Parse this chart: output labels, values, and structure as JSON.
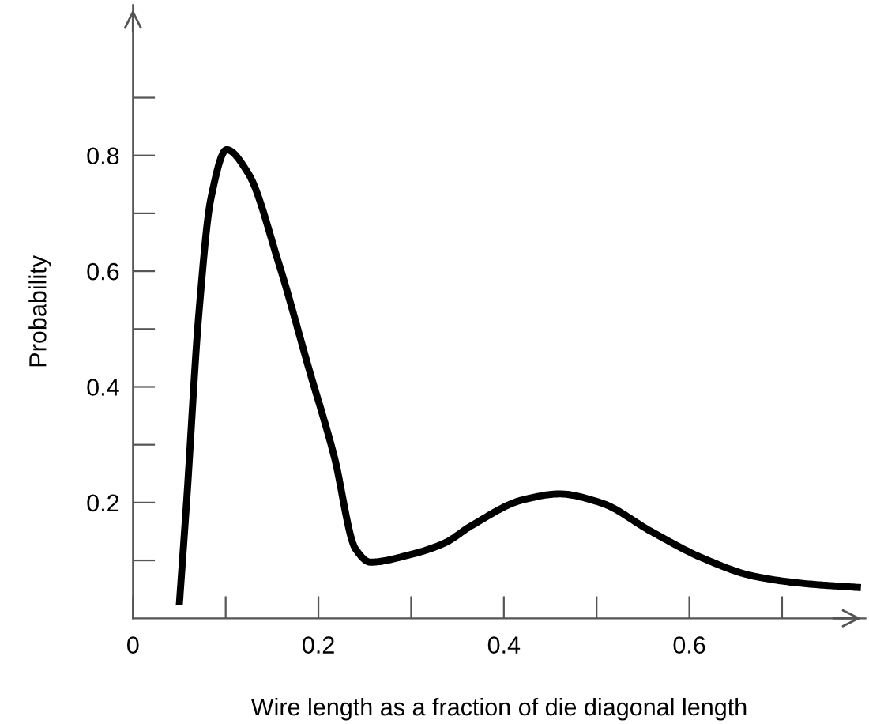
{
  "chart_data": {
    "type": "line",
    "xlabel": "Wire length as a fraction of die diagonal length",
    "ylabel": "Probability",
    "x": [
      0.05,
      0.058,
      0.071,
      0.084,
      0.101,
      0.124,
      0.157,
      0.19,
      0.217,
      0.24,
      0.256,
      0.299,
      0.336,
      0.365,
      0.421,
      0.46,
      0.504,
      0.559,
      0.613,
      0.669,
      0.724,
      0.785
    ],
    "series": [
      {
        "color": "#000000",
        "values": [
          0.023,
          0.205,
          0.525,
          0.725,
          0.81,
          0.77,
          0.615,
          0.43,
          0.28,
          0.12,
          0.097,
          0.11,
          0.13,
          0.16,
          0.205,
          0.215,
          0.2,
          0.15,
          0.105,
          0.073,
          0.06,
          0.053
        ]
      }
    ],
    "xlim": [
      0,
      0.79
    ],
    "ylim": [
      0,
      1.06
    ],
    "xticks": [
      {
        "value": 0,
        "label": "0"
      },
      {
        "value": 0.1,
        "label": null
      },
      0.2,
      {
        "value": 0.3,
        "label": null
      },
      0.4,
      {
        "value": 0.5,
        "label": null
      },
      0.6,
      {
        "value": 0.7,
        "label": null
      }
    ],
    "yticks": [
      {
        "value": 0.1,
        "label": null
      },
      0.2,
      {
        "value": 0.3,
        "label": null
      },
      0.4,
      {
        "value": 0.5,
        "label": null
      },
      0.6,
      {
        "value": 0.7,
        "label": null
      },
      0.8,
      {
        "value": 0.9,
        "label": null
      }
    ],
    "grid": false,
    "legend": false,
    "marker": "none",
    "line_style": "solid"
  }
}
